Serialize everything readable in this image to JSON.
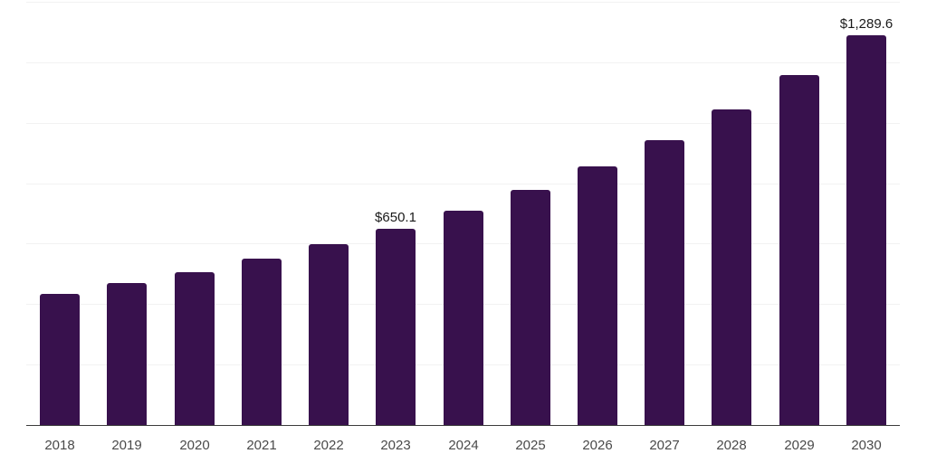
{
  "chart_data": {
    "type": "bar",
    "title": "",
    "xlabel": "",
    "ylabel": "",
    "categories": [
      "2018",
      "2019",
      "2020",
      "2021",
      "2022",
      "2023",
      "2024",
      "2025",
      "2026",
      "2027",
      "2028",
      "2029",
      "2030"
    ],
    "values": [
      433,
      469,
      506,
      551,
      599,
      650.1,
      710,
      779,
      856,
      943,
      1045,
      1159,
      1289.6
    ],
    "value_labels": [
      "",
      "",
      "",
      "",
      "",
      "$650.1",
      "",
      "",
      "",
      "",
      "",
      "",
      "$1,289.6"
    ],
    "ylim": [
      0,
      1400
    ],
    "grid_step": 200,
    "grid": "horizontal",
    "legend": "none",
    "colors": {
      "bar": "#38114d",
      "gridline": "#f2f2f2",
      "axis_line": "#3c3c3c",
      "tick_label": "#4a4a4a",
      "value_label": "#1a1a1a",
      "background": "#ffffff"
    }
  }
}
